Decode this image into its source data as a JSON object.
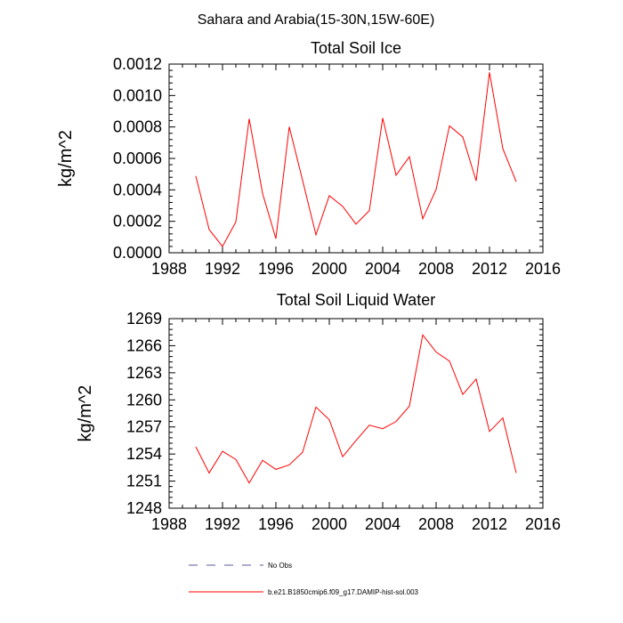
{
  "figure": {
    "suptitle": "Sahara and Arabia(15-30N,15W-60E)"
  },
  "chart_data": [
    {
      "type": "line",
      "title": "Total Soil Ice",
      "ylabel": "kg/m^2",
      "xlabel": "",
      "xlim": [
        1988,
        2016
      ],
      "ylim": [
        0.0,
        0.0012
      ],
      "xticks": [
        1988,
        1992,
        1996,
        2000,
        2004,
        2008,
        2012,
        2016
      ],
      "yticks": [
        "0.0000",
        "0.0002",
        "0.0004",
        "0.0006",
        "0.0008",
        "0.0010",
        "0.0012"
      ],
      "ytick_values": [
        0.0,
        0.0002,
        0.0004,
        0.0006,
        0.0008,
        0.001,
        0.0012
      ],
      "grid": false,
      "series": [
        {
          "name": "b.e21.B1850cmip6.f09_g17.DAMIP-hist-sol.003",
          "color": "#ff0000",
          "x": [
            1990,
            1991,
            1992,
            1993,
            1994,
            1995,
            1996,
            1997,
            1998,
            1999,
            2000,
            2001,
            2002,
            2003,
            2004,
            2005,
            2006,
            2007,
            2008,
            2009,
            2010,
            2011,
            2012,
            2013,
            2014
          ],
          "values": [
            0.000488,
            0.000148,
            4e-05,
            0.000196,
            0.000852,
            0.000378,
            9e-05,
            0.000801,
            0.00046,
            0.000114,
            0.000363,
            0.000295,
            0.000182,
            0.000268,
            0.000857,
            0.000493,
            0.000611,
            0.000216,
            0.000402,
            0.000807,
            0.000736,
            0.000457,
            0.001147,
            0.000662,
            0.000452
          ]
        }
      ]
    },
    {
      "type": "line",
      "title": "Total Soil Liquid Water",
      "ylabel": "kg/m^2",
      "xlabel": "",
      "xlim": [
        1988,
        2016
      ],
      "ylim": [
        1248,
        1269
      ],
      "xticks": [
        1988,
        1992,
        1996,
        2000,
        2004,
        2008,
        2012,
        2016
      ],
      "yticks": [
        "1248",
        "1251",
        "1254",
        "1257",
        "1260",
        "1263",
        "1266",
        "1269"
      ],
      "ytick_values": [
        1248,
        1251,
        1254,
        1257,
        1260,
        1263,
        1266,
        1269
      ],
      "grid": false,
      "series": [
        {
          "name": "b.e21.B1850cmip6.f09_g17.DAMIP-hist-sol.003",
          "color": "#ff0000",
          "x": [
            1990,
            1991,
            1992,
            1993,
            1994,
            1995,
            1996,
            1997,
            1998,
            1999,
            2000,
            2001,
            2002,
            2003,
            2004,
            2005,
            2006,
            2007,
            2008,
            2009,
            2010,
            2011,
            2012,
            2013,
            2014
          ],
          "values": [
            1254.8,
            1251.9,
            1254.3,
            1253.4,
            1250.8,
            1253.3,
            1252.3,
            1252.8,
            1254.2,
            1259.2,
            1257.8,
            1253.7,
            1255.5,
            1257.2,
            1256.8,
            1257.6,
            1259.3,
            1267.2,
            1265.3,
            1264.3,
            1260.6,
            1262.3,
            1256.5,
            1258.0,
            1251.9
          ]
        }
      ]
    }
  ],
  "legend": {
    "placement": "bottom",
    "entries": [
      {
        "label": "No Obs",
        "color": "#5a5aa0",
        "style": "dashed"
      },
      {
        "label": "b.e21.B1850cmip6.f09_g17.DAMIP-hist-sol.003",
        "color": "#ff0000",
        "style": "solid"
      }
    ]
  }
}
